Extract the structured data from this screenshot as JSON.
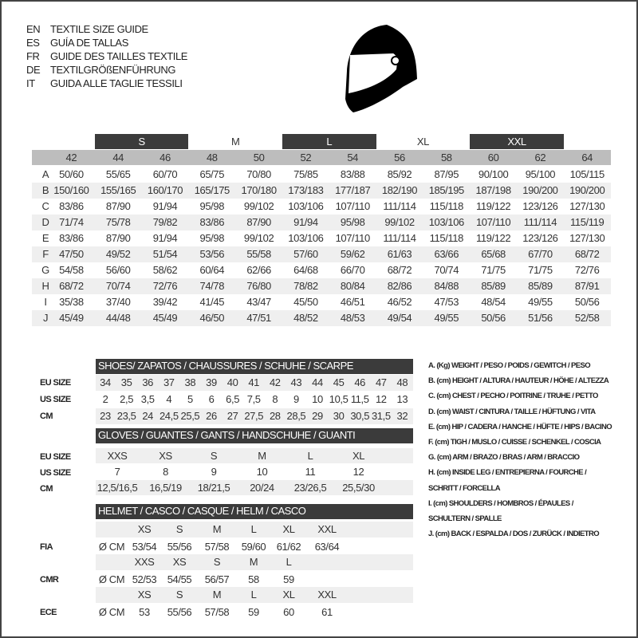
{
  "titles": [
    {
      "lang": "EN",
      "text": "TEXTILE SIZE GUIDE"
    },
    {
      "lang": "ES",
      "text": "GUÍA DE TALLAS"
    },
    {
      "lang": "FR",
      "text": "GUIDE DES TAILLES TEXTILE"
    },
    {
      "lang": "DE",
      "text": "TEXTILGRÖßENFÜHRUNG"
    },
    {
      "lang": "IT",
      "text": "GUIDA ALLE TAGLIE TESSILI"
    }
  ],
  "logo": {
    "icon": "helmet-icon"
  },
  "textile": {
    "size_groups": [
      {
        "label": "S",
        "style": "dark"
      },
      {
        "label": "M",
        "style": "plain"
      },
      {
        "label": "L",
        "style": "dark"
      },
      {
        "label": "XL",
        "style": "plain"
      },
      {
        "label": "XXL",
        "style": "dark"
      }
    ],
    "sizes": [
      "42",
      "44",
      "46",
      "48",
      "50",
      "52",
      "54",
      "56",
      "58",
      "60",
      "62",
      "64"
    ],
    "rows": [
      {
        "label": "A",
        "values": [
          "50/60",
          "55/65",
          "60/70",
          "65/75",
          "70/80",
          "75/85",
          "83/88",
          "85/92",
          "87/95",
          "90/100",
          "95/100",
          "105/115"
        ]
      },
      {
        "label": "B",
        "values": [
          "150/160",
          "155/165",
          "160/170",
          "165/175",
          "170/180",
          "173/183",
          "177/187",
          "182/190",
          "185/195",
          "187/198",
          "190/200",
          "190/200"
        ]
      },
      {
        "label": "C",
        "values": [
          "83/86",
          "87/90",
          "91/94",
          "95/98",
          "99/102",
          "103/106",
          "107/110",
          "111/114",
          "115/118",
          "119/122",
          "123/126",
          "127/130"
        ]
      },
      {
        "label": "D",
        "values": [
          "71/74",
          "75/78",
          "79/82",
          "83/86",
          "87/90",
          "91/94",
          "95/98",
          "99/102",
          "103/106",
          "107/110",
          "111/114",
          "115/119"
        ]
      },
      {
        "label": "E",
        "values": [
          "83/86",
          "87/90",
          "91/94",
          "95/98",
          "99/102",
          "103/106",
          "107/110",
          "111/114",
          "115/118",
          "119/122",
          "123/126",
          "127/130"
        ]
      },
      {
        "label": "F",
        "values": [
          "47/50",
          "49/52",
          "51/54",
          "53/56",
          "55/58",
          "57/60",
          "59/62",
          "61/63",
          "63/66",
          "65/68",
          "67/70",
          "68/72"
        ]
      },
      {
        "label": "G",
        "values": [
          "54/58",
          "56/60",
          "58/62",
          "60/64",
          "62/66",
          "64/68",
          "66/70",
          "68/72",
          "70/74",
          "71/75",
          "71/75",
          "72/76"
        ]
      },
      {
        "label": "H",
        "values": [
          "68/72",
          "70/74",
          "72/76",
          "74/78",
          "76/80",
          "78/82",
          "80/84",
          "82/86",
          "84/88",
          "85/89",
          "85/89",
          "87/91"
        ]
      },
      {
        "label": "I",
        "values": [
          "35/38",
          "37/40",
          "39/42",
          "41/45",
          "43/47",
          "45/50",
          "46/51",
          "46/52",
          "47/53",
          "48/54",
          "49/55",
          "50/56"
        ]
      },
      {
        "label": "J",
        "values": [
          "45/49",
          "44/48",
          "45/49",
          "46/50",
          "47/51",
          "48/52",
          "48/53",
          "49/54",
          "49/55",
          "50/56",
          "51/56",
          "52/58"
        ]
      }
    ]
  },
  "shoes": {
    "title": "SHOES/ ZAPATOS / CHAUSSURES / SCHUHE / SCARPE",
    "rows": [
      {
        "label": "EU SIZE",
        "values": [
          "34",
          "35",
          "36",
          "37",
          "38",
          "39",
          "40",
          "41",
          "42",
          "43",
          "44",
          "45",
          "46",
          "47",
          "48"
        ]
      },
      {
        "label": "US SIZE",
        "values": [
          "2",
          "2,5",
          "3,5",
          "4",
          "5",
          "6",
          "6,5",
          "7,5",
          "8",
          "9",
          "10",
          "10,5",
          "11,5",
          "12",
          "13"
        ]
      },
      {
        "label": "CM",
        "values": [
          "23",
          "23,5",
          "24",
          "24,5",
          "25,5",
          "26",
          "27",
          "27,5",
          "28",
          "28,5",
          "29",
          "30",
          "30,5",
          "31,5",
          "32"
        ]
      }
    ]
  },
  "gloves": {
    "title": "GLOVES / GUANTES / GANTS / HANDSCHUHE / GUANTI",
    "rows": [
      {
        "label": "EU SIZE",
        "values": [
          "XXS",
          "XS",
          "S",
          "M",
          "L",
          "XL"
        ]
      },
      {
        "label": "US SIZE",
        "values": [
          "7",
          "8",
          "9",
          "10",
          "11",
          "12"
        ]
      },
      {
        "label": "CM",
        "values": [
          "12,5/16,5",
          "16,5/19",
          "18/21,5",
          "20/24",
          "23/26,5",
          "25,5/30"
        ]
      }
    ]
  },
  "helmet": {
    "title": "HELMET / CASCO / CASQUE / HELM / CASCO",
    "unit": "Ø CM",
    "standards": [
      {
        "label": "FIA",
        "sizes": [
          "XS",
          "S",
          "M",
          "L",
          "XL",
          "XXL"
        ],
        "values": [
          "53/54",
          "55/56",
          "57/58",
          "59/60",
          "61/62",
          "63/64"
        ]
      },
      {
        "label": "CMR",
        "sizes": [
          "XXS",
          "XS",
          "S",
          "M",
          "L"
        ],
        "values": [
          "52/53",
          "54/55",
          "56/57",
          "58",
          "59"
        ]
      },
      {
        "label": "ECE",
        "sizes": [
          "XS",
          "S",
          "M",
          "L",
          "XL",
          "XXL"
        ],
        "values": [
          "53",
          "55/56",
          "57/58",
          "59",
          "60",
          "61"
        ]
      }
    ]
  },
  "legend": [
    "A. (Kg) WEIGHT / PESO / POIDS / GEWITCH / PESO",
    "B. (cm) HEIGHT / ALTURA / HAUTEUR / HÖHE / ALTEZZA",
    "C. (cm) CHEST / PECHO / POITRINE / TRUHE / PETTO",
    "D. (cm) WAIST / CINTURA / TAILLE / HÜFTUNG / VITA",
    "E. (cm) HIP / CADERA / HANCHE / HÜFTE / HIPS / BACINO",
    "F. (cm) TIGH / MUSLO / CUISSE / SCHENKEL / COSCIA",
    "G. (cm) ARM / BRAZO / BRAS / ARM / BRACCIO",
    "H. (cm) INSIDE LEG / ENTREPIERNA / FOURCHE /",
    "SCHRITT / FORCELLA",
    "I. (cm) SHOULDERS / HOMBROS / ÉPAULES /",
    "SCHULTERN / SPALLE",
    "J. (cm) BACK / ESPALDA / DOS / ZURÜCK / INDIETRO"
  ]
}
